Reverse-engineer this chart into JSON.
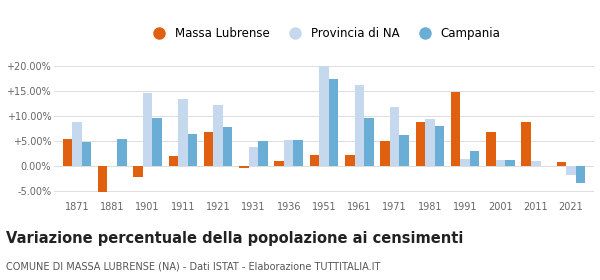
{
  "years": [
    1871,
    1881,
    1901,
    1911,
    1921,
    1931,
    1936,
    1951,
    1961,
    1971,
    1981,
    1991,
    2001,
    2011,
    2021
  ],
  "massa_lubrense": [
    5.5,
    -5.2,
    -2.2,
    2.0,
    6.8,
    -0.3,
    1.1,
    2.2,
    2.2,
    5.0,
    8.8,
    14.8,
    6.9,
    8.8,
    0.9
  ],
  "provincia_na": [
    8.8,
    0.0,
    14.7,
    13.5,
    12.3,
    3.8,
    5.2,
    20.0,
    16.2,
    11.9,
    9.5,
    1.5,
    1.2,
    1.1,
    -1.8
  ],
  "campania": [
    4.8,
    5.5,
    9.7,
    6.5,
    7.8,
    5.0,
    5.3,
    17.5,
    9.6,
    6.2,
    8.0,
    3.1,
    1.3,
    0.0,
    -3.3
  ],
  "color_massa": "#e06010",
  "color_provincia": "#c5d8ee",
  "color_campania": "#6aaed6",
  "title": "Variazione percentuale della popolazione ai censimenti",
  "subtitle": "COMUNE DI MASSA LUBRENSE (NA) - Dati ISTAT - Elaborazione TUTTITALIA.IT",
  "legend_labels": [
    "Massa Lubrense",
    "Provincia di NA",
    "Campania"
  ],
  "ylim": [
    -6.5,
    22
  ],
  "yticks": [
    -5,
    0,
    5,
    10,
    15,
    20
  ],
  "ytick_labels": [
    "-5.00%",
    "0.00%",
    "+5.00%",
    "+10.00%",
    "+15.00%",
    "+20.00%"
  ],
  "bar_width": 0.27,
  "background_color": "#ffffff",
  "grid_color": "#dddddd",
  "title_fontsize": 10.5,
  "subtitle_fontsize": 7.0,
  "tick_fontsize": 7.0,
  "legend_fontsize": 8.5
}
